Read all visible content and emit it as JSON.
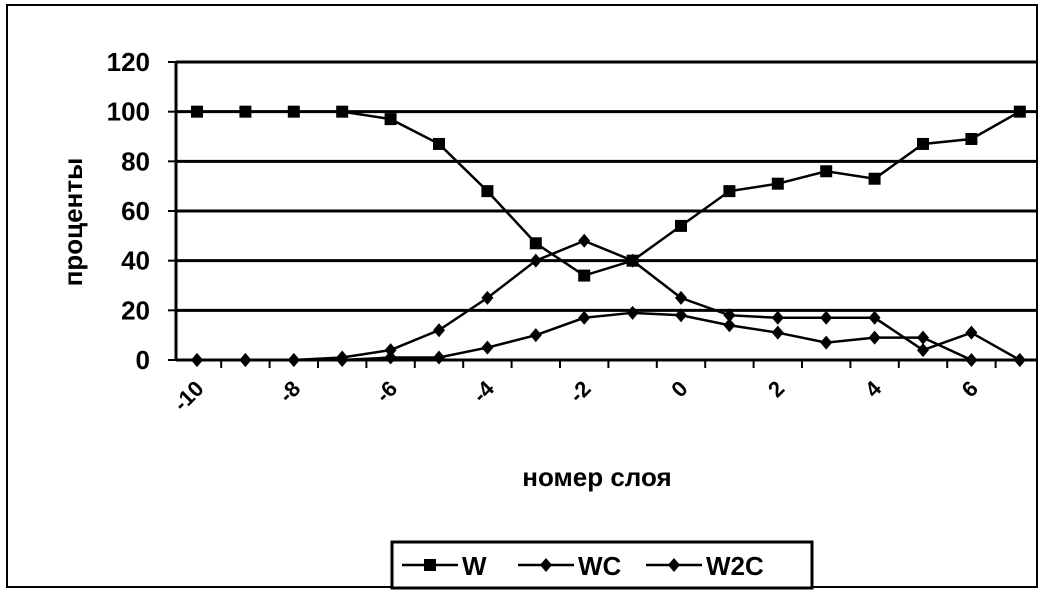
{
  "chart_data": {
    "type": "line",
    "title": "",
    "xlabel": "номер слоя",
    "ylabel": "проценты",
    "ylim": [
      0,
      120
    ],
    "yticks": [
      "0",
      "20",
      "40",
      "60",
      "80",
      "100",
      "120"
    ],
    "xticks": [
      "-10",
      "-8",
      "-6",
      "-4",
      "-2",
      "0",
      "2",
      "4",
      "6"
    ],
    "grid": true,
    "legend_position": "bottom",
    "series": [
      {
        "name": "W",
        "marker": "square",
        "values": [
          100,
          100,
          100,
          100,
          97,
          87,
          68,
          47,
          34,
          40,
          54,
          68,
          71,
          76,
          73,
          87,
          89,
          100
        ]
      },
      {
        "name": "WC",
        "marker": "diamond",
        "values": [
          0,
          0,
          0,
          1,
          4,
          12,
          25,
          40,
          48,
          40,
          25,
          18,
          17,
          17,
          17,
          4,
          11,
          0
        ]
      },
      {
        "name": "W2C",
        "marker": "diamond",
        "values": [
          0,
          0,
          0,
          0,
          1,
          1,
          5,
          10,
          17,
          19,
          18,
          14,
          11,
          7,
          9,
          9,
          0,
          0
        ]
      }
    ]
  }
}
